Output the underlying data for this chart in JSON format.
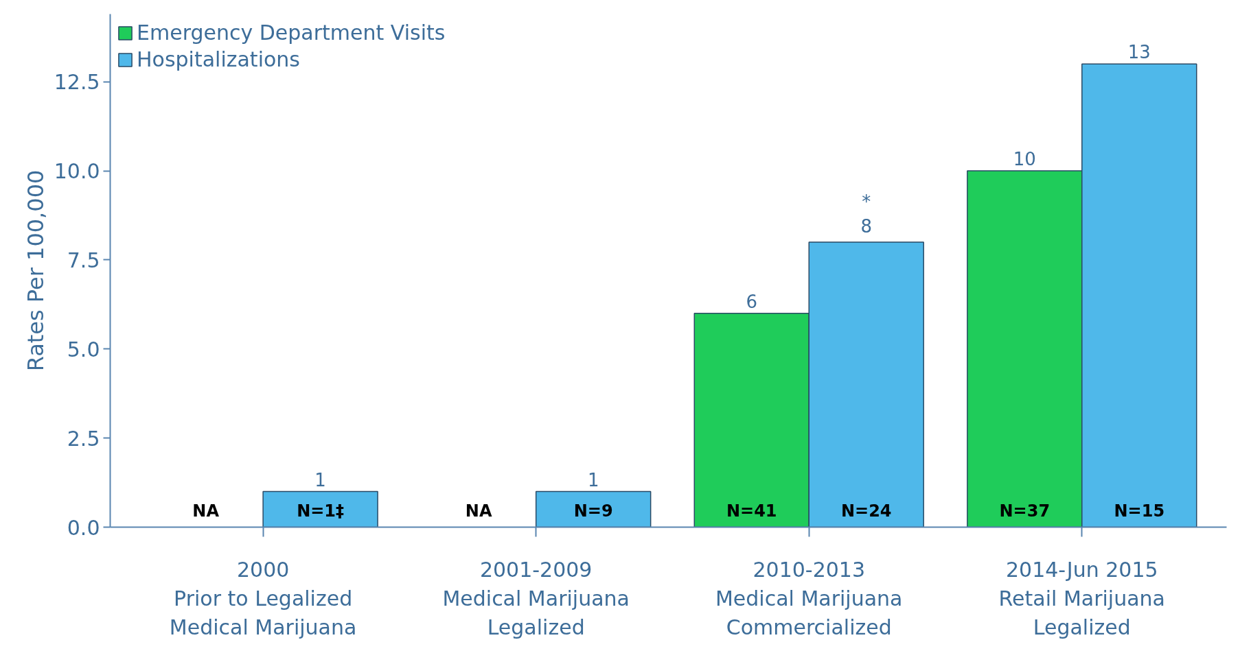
{
  "chart_data": {
    "type": "bar",
    "ylabel": "Rates Per 100,000",
    "categories": [
      "2000\nPrior to Legalized\nMedical Marijuana",
      "2001-2009\nMedical Marijuana\nLegalized",
      "2010-2013\nMedical Marijuana\nCommercialized",
      "2014-Jun 2015\nRetail Marijuana\nLegalized"
    ],
    "series": [
      {
        "name": "Emergency Department Visits",
        "color": "#1fcc5a",
        "values": [
          null,
          null,
          6,
          10
        ],
        "value_labels": [
          null,
          null,
          "6",
          "10"
        ]
      },
      {
        "name": "Hospitalizations",
        "color": "#4fb8ea",
        "values": [
          1,
          1,
          8,
          13
        ],
        "value_labels": [
          "1",
          "1",
          "*\n8",
          "13"
        ]
      }
    ],
    "annotations": [
      "NA",
      "N=1‡",
      "NA",
      "N=9",
      "N=41",
      "N=24",
      "N=37",
      "N=15"
    ],
    "ylim": [
      0,
      14.4
    ],
    "yticks": [
      {
        "value": 0,
        "label": "0.0"
      },
      {
        "value": 2.5,
        "label": "2.5"
      },
      {
        "value": 5,
        "label": "5.0"
      },
      {
        "value": 7.5,
        "label": "7.5"
      },
      {
        "value": 10,
        "label": "10.0"
      },
      {
        "value": 12.5,
        "label": "12.5"
      }
    ],
    "grid": false,
    "legend": "top left"
  }
}
